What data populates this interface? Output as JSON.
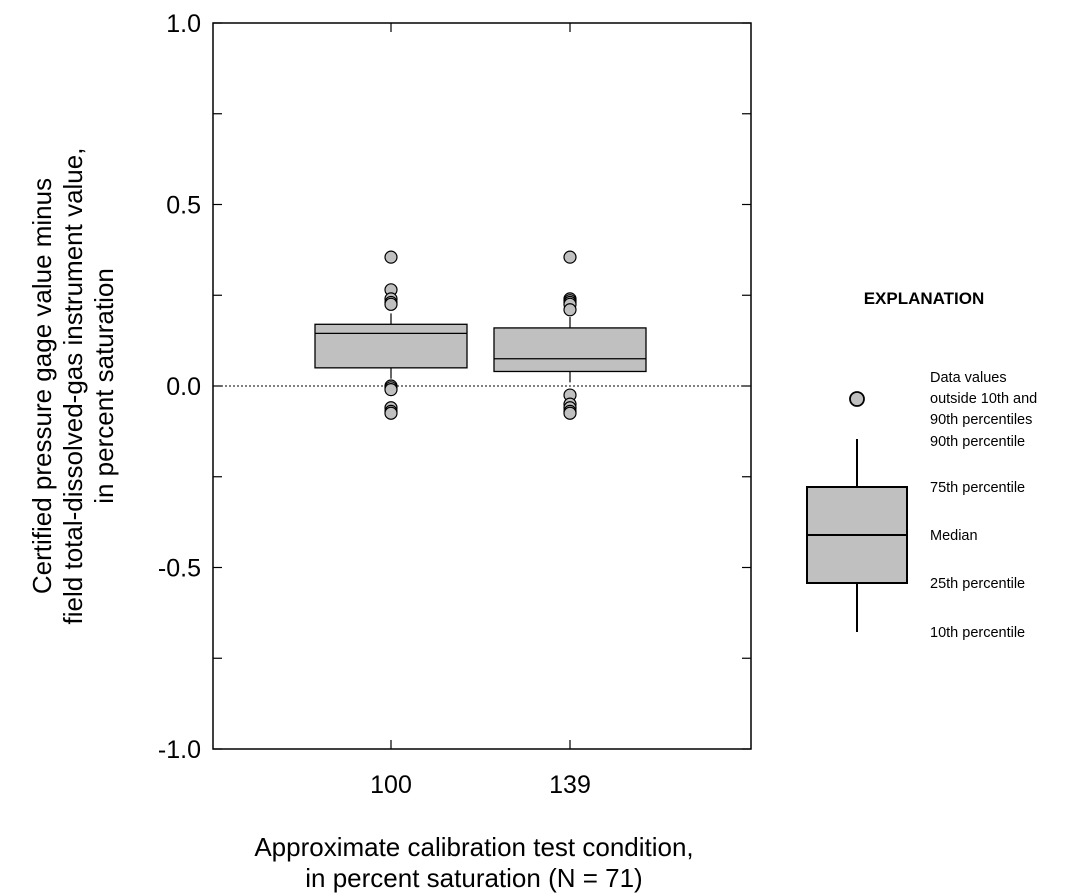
{
  "chart_data": {
    "type": "box",
    "categories": [
      "100",
      "139"
    ],
    "ylim": [
      -1.0,
      1.0
    ],
    "yticks": [
      "1.0",
      "0.5",
      "0.0",
      "-0.5",
      "-1.0"
    ],
    "xlabel": [
      "Approximate calibration test condition,",
      "in percent saturation (N = 71)"
    ],
    "ylabel": [
      "Certified pressure gage value minus",
      "field total-dissolved-gas instrument value,",
      "in percent saturation"
    ],
    "reference_line": 0.0,
    "grid": false,
    "boxes": [
      {
        "category": "100",
        "p10": 0.02,
        "q1": 0.05,
        "median": 0.145,
        "q3": 0.17,
        "p90": 0.2,
        "outliers": [
          0.355,
          0.265,
          0.24,
          0.23,
          0.225,
          0.0,
          -0.005,
          -0.01,
          -0.06,
          -0.07,
          -0.075
        ]
      },
      {
        "category": "139",
        "p10": 0.01,
        "q1": 0.04,
        "median": 0.075,
        "q3": 0.16,
        "p90": 0.19,
        "outliers": [
          0.355,
          0.24,
          0.235,
          0.23,
          0.225,
          0.21,
          -0.025,
          -0.05,
          -0.06,
          -0.07,
          -0.075
        ]
      }
    ],
    "colors": {
      "box_fill": "#c0c0c0",
      "outlier_fill": "#c0c0c0",
      "stroke": "#000000"
    },
    "legend": {
      "title": "EXPLANATION",
      "outlier_label": [
        "Data values",
        "outside 10th and",
        "90th percentiles"
      ],
      "p90": "90th percentile",
      "q3": "75th percentile",
      "median": "Median",
      "q1": "25th percentile",
      "p10": "10th percentile",
      "placement": "right"
    }
  }
}
